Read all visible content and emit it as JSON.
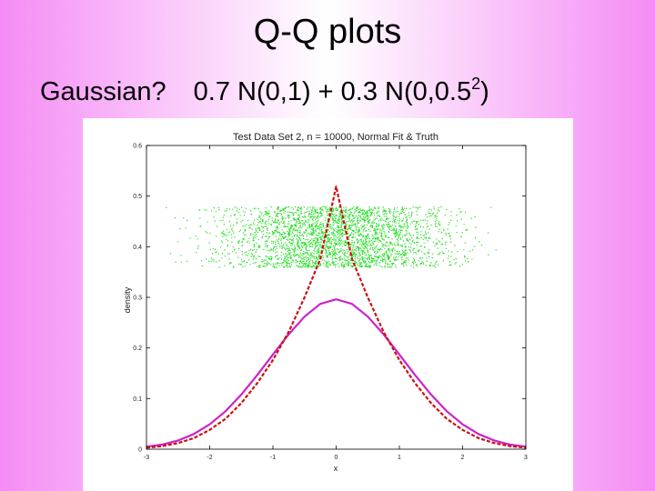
{
  "slide": {
    "title": "Q-Q plots",
    "subtitle_left": "Gaussian?",
    "subtitle_expr_main": "0.7 N(0,1) + 0.3 N(0,0.5",
    "subtitle_expr_sup": "2",
    "subtitle_expr_end": ")"
  },
  "colors": {
    "scatter": "#22dd22",
    "fit_line": "#cc22cc",
    "truth_line": "#cc1111",
    "axis": "#000000"
  },
  "chart_data": {
    "type": "line",
    "title": "Test Data Set 2, n = 10000, Normal Fit & Truth",
    "xlabel": "x",
    "ylabel": "density",
    "xlim": [
      -3,
      3
    ],
    "ylim": [
      0,
      0.6
    ],
    "xticks": [
      -3,
      -2,
      -1,
      0,
      1,
      2,
      3
    ],
    "yticks": [
      0,
      0.1,
      0.2,
      0.3,
      0.4,
      0.5,
      0.6
    ],
    "grid": false,
    "x": [
      -3,
      -2.75,
      -2.5,
      -2.25,
      -2,
      -1.75,
      -1.5,
      -1.25,
      -1,
      -0.75,
      -0.5,
      -0.25,
      0,
      0.25,
      0.5,
      0.75,
      1,
      1.25,
      1.5,
      1.75,
      2,
      2.25,
      2.5,
      2.75,
      3
    ],
    "series": [
      {
        "role": "normal-fit",
        "style": "solid",
        "values": [
          0.005,
          0.009,
          0.017,
          0.03,
          0.049,
          0.075,
          0.108,
          0.146,
          0.187,
          0.227,
          0.262,
          0.287,
          0.296,
          0.287,
          0.262,
          0.227,
          0.187,
          0.146,
          0.108,
          0.075,
          0.049,
          0.03,
          0.017,
          0.009,
          0.005
        ]
      },
      {
        "role": "truth",
        "style": "dashed",
        "values": [
          0.003,
          0.006,
          0.012,
          0.022,
          0.038,
          0.06,
          0.091,
          0.13,
          0.176,
          0.232,
          0.3,
          0.376,
          0.519,
          0.376,
          0.3,
          0.232,
          0.176,
          0.13,
          0.091,
          0.06,
          0.038,
          0.022,
          0.012,
          0.006,
          0.003
        ]
      }
    ],
    "scatter_band": {
      "x_range": [
        -2.7,
        2.6
      ],
      "y_range": [
        0.36,
        0.48
      ],
      "density_center_sd": 0.9
    }
  }
}
